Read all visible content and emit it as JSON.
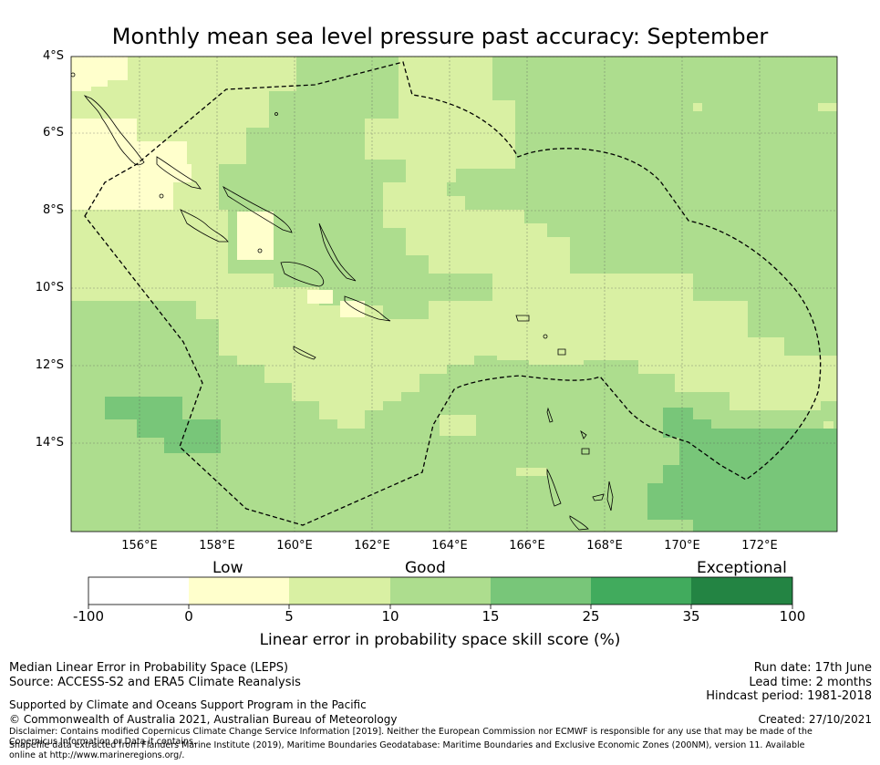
{
  "title": "Monthly mean sea level pressure past accuracy: September",
  "map": {
    "lat_labels": [
      "4°S",
      "6°S",
      "8°S",
      "10°S",
      "12°S",
      "14°S"
    ],
    "lon_labels": [
      "156°E",
      "158°E",
      "160°E",
      "162°E",
      "164°E",
      "166°E",
      "168°E",
      "170°E",
      "172°E"
    ],
    "lon_range": [
      154.2,
      173.7
    ],
    "lat_range": [
      -16.2,
      -3.9
    ],
    "background_color": "#addd8e",
    "coast_color": "#000000",
    "boundary_style": "dashed"
  },
  "colorbar": {
    "category_labels": [
      "Low",
      "Good",
      "Exceptional"
    ],
    "tick_labels": [
      "-100",
      "0",
      "5",
      "10",
      "15",
      "25",
      "35",
      "100"
    ],
    "colors": [
      "#ffffff",
      "#ffffcc",
      "#d9f0a3",
      "#addd8e",
      "#78c679",
      "#41ab5d",
      "#238443"
    ],
    "label": "Linear error in probability space skill score (%)"
  },
  "footer": {
    "method": "Median Linear Error in Probability Space (LEPS)",
    "source": "Source: ACCESS-S2 and ERA5 Climate Reanalysis",
    "support": "Supported by Climate and Oceans Support Program in the Pacific",
    "copyright": "© Commonwealth of Australia 2021, Australian Bureau of Meteorology",
    "disclaimer": "Disclaimer: Contains modified Copernicus Climate Change Service Information [2019]. Neither the European Commission nor ECMWF is responsible for any use that may be made of the Copernicus Information or Data it contains.",
    "shapefile": "Shapefile data extracted from Flanders Marine Institute (2019), Maritime Boundaries Geodatabase: Maritime Boundaries and Exclusive Economic Zones (200NM), version 11. Available online at http://www.marineregions.org/.",
    "run_date": "Run date: 17th June",
    "lead_time": "Lead time: 2 months",
    "hindcast": "Hindcast period: 1981-2018",
    "created": "Created: 27/10/2021"
  }
}
